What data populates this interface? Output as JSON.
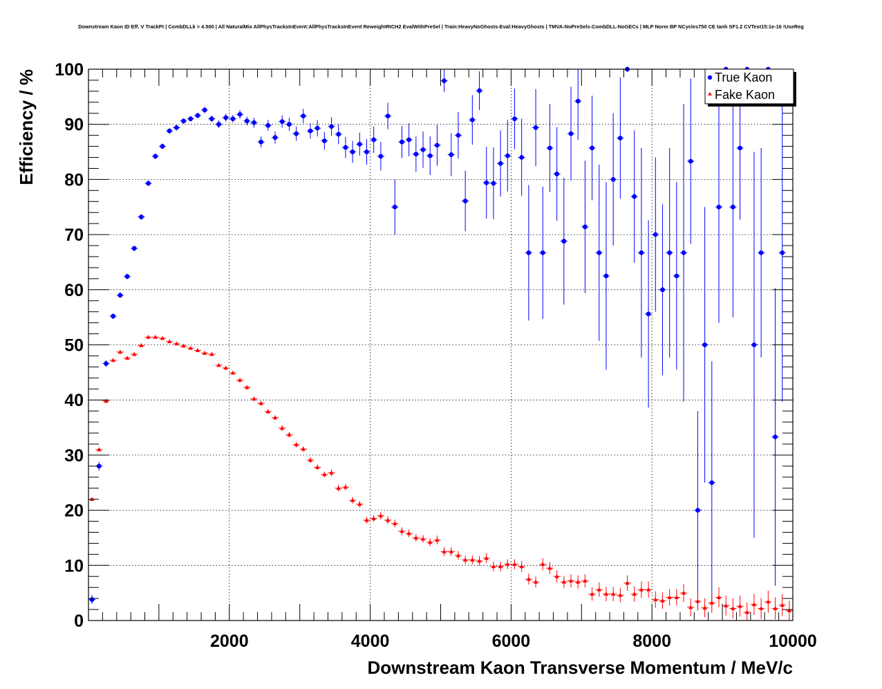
{
  "chart_data": {
    "type": "scatter",
    "title": "Downstream Kaon ID Eff. V TrackPt | CombDLLk > 4.500 | All NaturalMix AllPhysTracksInEvent:AllPhysTracksInEvent ReweightRICH2 EvalWithPreSel | Train:HeavyNoGhosts-Eval:HeavyGhosts | TMVA-NoPreSels-CombDLL-NoGECs | MLP Norm BP NCycles750 CE tanh SF1.2 CVTest15:1e-16 !UseReg",
    "xlabel": "Downstream Kaon Transverse Momentum / MeV/c",
    "ylabel": "Efficiency / %",
    "xlim": [
      0,
      10000
    ],
    "ylim": [
      0,
      100
    ],
    "xticks": [
      2000,
      4000,
      6000,
      8000,
      10000
    ],
    "xtick_labels": [
      "2000",
      "4000",
      "6000",
      "8000",
      "10000"
    ],
    "yticks": [
      0,
      10,
      20,
      30,
      40,
      50,
      60,
      70,
      80,
      90,
      100
    ],
    "ytick_labels": [
      "0",
      "10",
      "20",
      "30",
      "40",
      "50",
      "60",
      "70",
      "80",
      "90",
      "100"
    ],
    "grid": true,
    "legend_position": "top-right",
    "series": [
      {
        "name": "True Kaon",
        "color": "#0000ff",
        "marker": "circle",
        "points": [
          [
            50,
            3.8,
            0.8
          ],
          [
            150,
            28,
            0.8
          ],
          [
            250,
            46.6,
            0.6
          ],
          [
            350,
            55.2,
            0.5
          ],
          [
            450,
            59,
            0.5
          ],
          [
            550,
            62.4,
            0.5
          ],
          [
            650,
            67.5,
            0.5
          ],
          [
            750,
            73.2,
            0.5
          ],
          [
            850,
            79.3,
            0.5
          ],
          [
            950,
            84.2,
            0.5
          ],
          [
            1050,
            86,
            0.5
          ],
          [
            1150,
            88.8,
            0.5
          ],
          [
            1250,
            89.4,
            0.5
          ],
          [
            1350,
            90.6,
            0.5
          ],
          [
            1450,
            91,
            0.5
          ],
          [
            1550,
            91.6,
            0.5
          ],
          [
            1650,
            92.6,
            0.6
          ],
          [
            1750,
            91,
            0.6
          ],
          [
            1850,
            90,
            0.7
          ],
          [
            1950,
            91.2,
            0.7
          ],
          [
            2050,
            91,
            0.7
          ],
          [
            2150,
            91.8,
            0.8
          ],
          [
            2250,
            90.6,
            0.8
          ],
          [
            2350,
            90.3,
            0.9
          ],
          [
            2450,
            86.8,
            1.0
          ],
          [
            2550,
            89.8,
            1.0
          ],
          [
            2650,
            87.6,
            1.1
          ],
          [
            2750,
            90.5,
            1.1
          ],
          [
            2850,
            90,
            1.2
          ],
          [
            2950,
            88.3,
            1.3
          ],
          [
            3050,
            91.5,
            1.3
          ],
          [
            3150,
            88.8,
            1.4
          ],
          [
            3250,
            89.3,
            1.5
          ],
          [
            3350,
            87,
            1.6
          ],
          [
            3450,
            89.6,
            1.7
          ],
          [
            3550,
            88.2,
            1.8
          ],
          [
            3650,
            85.8,
            1.9
          ],
          [
            3750,
            85,
            2.0
          ],
          [
            3850,
            86.4,
            2.1
          ],
          [
            3950,
            85,
            2.3
          ],
          [
            4050,
            87.2,
            2.4
          ],
          [
            4150,
            84.2,
            2.6
          ],
          [
            4250,
            91.5,
            2.4
          ],
          [
            4350,
            75,
            5
          ],
          [
            4450,
            86.8,
            2.9
          ],
          [
            4550,
            87.2,
            3.0
          ],
          [
            4650,
            84.6,
            3.2
          ],
          [
            4750,
            85.4,
            3.3
          ],
          [
            4850,
            84.3,
            3.5
          ],
          [
            4950,
            86.2,
            3.7
          ],
          [
            5050,
            97.9,
            2.0
          ],
          [
            5150,
            84.5,
            3.9
          ],
          [
            5250,
            88,
            4.2
          ],
          [
            5350,
            76.1,
            5.5
          ],
          [
            5450,
            90.8,
            4.5
          ],
          [
            5550,
            96.1,
            3.5
          ],
          [
            5650,
            79.4,
            6.5
          ],
          [
            5750,
            79.3,
            6.5
          ],
          [
            5850,
            82.9,
            6
          ],
          [
            5950,
            84.3,
            6.5
          ],
          [
            6050,
            91,
            5.5
          ],
          [
            6150,
            84,
            7
          ],
          [
            6250,
            66.7,
            12.3
          ],
          [
            6350,
            89.4,
            7
          ],
          [
            6450,
            66.7,
            12
          ],
          [
            6550,
            85.7,
            8
          ],
          [
            6650,
            81,
            8.5
          ],
          [
            6750,
            68.8,
            11.5
          ],
          [
            6850,
            88.3,
            8.5
          ],
          [
            6950,
            94.2,
            7
          ],
          [
            7050,
            71.4,
            12
          ],
          [
            7150,
            85.7,
            9.5
          ],
          [
            7250,
            66.7,
            16
          ],
          [
            7350,
            62.5,
            17
          ],
          [
            7450,
            80,
            12
          ],
          [
            7550,
            87.5,
            11
          ],
          [
            7650,
            100,
            0.5
          ],
          [
            7750,
            76.9,
            12
          ],
          [
            7850,
            66.7,
            19
          ],
          [
            7950,
            55.6,
            17
          ],
          [
            8050,
            70,
            14
          ],
          [
            8150,
            60,
            15.5
          ],
          [
            8250,
            66.7,
            19
          ],
          [
            8350,
            62.5,
            17
          ],
          [
            8450,
            66.7,
            27
          ],
          [
            8550,
            83.3,
            15
          ],
          [
            8650,
            20,
            18
          ],
          [
            8750,
            50,
            25
          ],
          [
            8850,
            25,
            22
          ],
          [
            8950,
            75,
            21
          ],
          [
            9050,
            100,
            0.5
          ],
          [
            9150,
            75,
            20
          ],
          [
            9250,
            85.7,
            13
          ],
          [
            9350,
            100,
            0.5
          ],
          [
            9450,
            50,
            35
          ],
          [
            9550,
            66.7,
            19
          ],
          [
            9650,
            100,
            0.5
          ],
          [
            9750,
            33.3,
            27
          ],
          [
            9850,
            66.7,
            27
          ]
        ]
      },
      {
        "name": "Fake Kaon",
        "color": "#ff0000",
        "marker": "triangle",
        "points": [
          [
            50,
            22,
            0.3
          ],
          [
            150,
            31,
            0.3
          ],
          [
            250,
            39.8,
            0.3
          ],
          [
            350,
            47.2,
            0.3
          ],
          [
            450,
            48.7,
            0.3
          ],
          [
            550,
            47.6,
            0.3
          ],
          [
            650,
            48.3,
            0.3
          ],
          [
            750,
            49.9,
            0.3
          ],
          [
            850,
            51.4,
            0.3
          ],
          [
            950,
            51.4,
            0.3
          ],
          [
            1050,
            51.2,
            0.3
          ],
          [
            1150,
            50.6,
            0.3
          ],
          [
            1250,
            50.2,
            0.3
          ],
          [
            1350,
            49.8,
            0.3
          ],
          [
            1450,
            49.4,
            0.3
          ],
          [
            1550,
            49,
            0.3
          ],
          [
            1650,
            48.5,
            0.3
          ],
          [
            1750,
            48.3,
            0.3
          ],
          [
            1850,
            46.3,
            0.3
          ],
          [
            1950,
            45.8,
            0.3
          ],
          [
            2050,
            44.9,
            0.3
          ],
          [
            2150,
            43.6,
            0.4
          ],
          [
            2250,
            42.3,
            0.4
          ],
          [
            2350,
            40.2,
            0.4
          ],
          [
            2450,
            39.4,
            0.4
          ],
          [
            2550,
            37.9,
            0.4
          ],
          [
            2650,
            36.8,
            0.4
          ],
          [
            2750,
            34.9,
            0.5
          ],
          [
            2850,
            33.7,
            0.5
          ],
          [
            2950,
            31.9,
            0.5
          ],
          [
            3050,
            31.1,
            0.5
          ],
          [
            3150,
            29.1,
            0.5
          ],
          [
            3250,
            27.8,
            0.5
          ],
          [
            3350,
            26.5,
            0.5
          ],
          [
            3450,
            26.8,
            0.6
          ],
          [
            3550,
            24,
            0.6
          ],
          [
            3650,
            24.2,
            0.6
          ],
          [
            3750,
            21.8,
            0.6
          ],
          [
            3850,
            21.1,
            0.6
          ],
          [
            3950,
            18.2,
            0.6
          ],
          [
            4050,
            18.5,
            0.6
          ],
          [
            4150,
            19,
            0.7
          ],
          [
            4250,
            18.2,
            0.7
          ],
          [
            4350,
            17.6,
            0.7
          ],
          [
            4450,
            16.2,
            0.7
          ],
          [
            4550,
            15.8,
            0.7
          ],
          [
            4650,
            15,
            0.7
          ],
          [
            4750,
            14.8,
            0.7
          ],
          [
            4850,
            14.2,
            0.7
          ],
          [
            4950,
            14.6,
            0.8
          ],
          [
            5050,
            12.5,
            0.8
          ],
          [
            5150,
            12.5,
            0.8
          ],
          [
            5250,
            11.8,
            0.8
          ],
          [
            5350,
            11,
            0.8
          ],
          [
            5450,
            11,
            0.8
          ],
          [
            5550,
            10.8,
            0.9
          ],
          [
            5650,
            11.3,
            0.9
          ],
          [
            5750,
            9.8,
            0.9
          ],
          [
            5850,
            9.8,
            0.9
          ],
          [
            5950,
            10.2,
            0.9
          ],
          [
            6050,
            10.2,
            0.9
          ],
          [
            6150,
            9.8,
            1.0
          ],
          [
            6250,
            7.5,
            1.0
          ],
          [
            6350,
            7,
            1.0
          ],
          [
            6450,
            10.2,
            1.1
          ],
          [
            6550,
            9.5,
            1.1
          ],
          [
            6650,
            8,
            1.1
          ],
          [
            6750,
            7,
            1.1
          ],
          [
            6850,
            7.2,
            1.2
          ],
          [
            6950,
            7,
            1.2
          ],
          [
            7050,
            7.2,
            1.2
          ],
          [
            7150,
            4.8,
            1.2
          ],
          [
            7250,
            5.6,
            1.3
          ],
          [
            7350,
            4.8,
            1.3
          ],
          [
            7450,
            4.8,
            1.3
          ],
          [
            7550,
            4.6,
            1.3
          ],
          [
            7650,
            6.8,
            1.4
          ],
          [
            7750,
            4.8,
            1.4
          ],
          [
            7850,
            5.6,
            1.5
          ],
          [
            7950,
            5.6,
            1.5
          ],
          [
            8050,
            3.8,
            1.5
          ],
          [
            8150,
            3.6,
            1.5
          ],
          [
            8250,
            4.2,
            1.5
          ],
          [
            8350,
            4.2,
            1.5
          ],
          [
            8450,
            5,
            1.6
          ],
          [
            8550,
            2.4,
            1.6
          ],
          [
            8650,
            3.5,
            1.7
          ],
          [
            8750,
            2.3,
            1.7
          ],
          [
            8850,
            3.2,
            1.8
          ],
          [
            8950,
            4.2,
            1.8
          ],
          [
            9050,
            2.7,
            1.8
          ],
          [
            9150,
            2.2,
            1.8
          ],
          [
            9250,
            2.6,
            1.9
          ],
          [
            9350,
            1.5,
            1.8
          ],
          [
            9450,
            2.9,
            1.9
          ],
          [
            9550,
            2.2,
            1.9
          ],
          [
            9650,
            3.4,
            2.0
          ],
          [
            9750,
            2.2,
            2.0
          ],
          [
            9850,
            2.8,
            2.0
          ],
          [
            9950,
            1.8,
            1.8
          ]
        ]
      }
    ]
  }
}
